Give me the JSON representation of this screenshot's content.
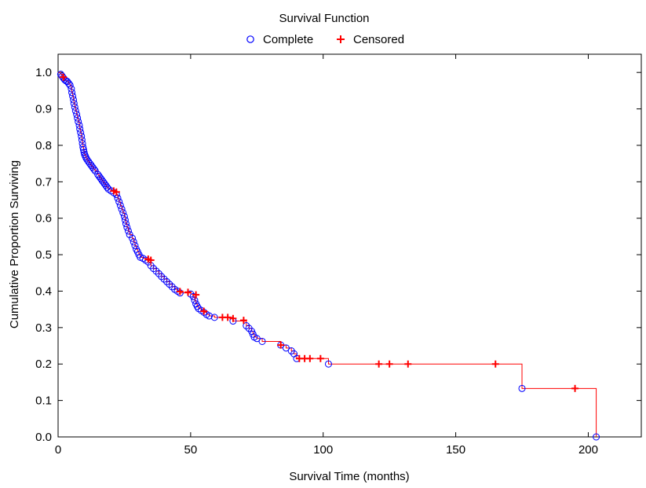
{
  "chart_data": {
    "type": "line",
    "title": "Survival Function",
    "xlabel": "Survival Time (months)",
    "ylabel": "Cumulative Proportion Surviving",
    "xlim": [
      0,
      220
    ],
    "ylim": [
      0,
      1.05
    ],
    "x_ticks": [
      0,
      50,
      100,
      150,
      200
    ],
    "y_ticks": [
      0.0,
      0.1,
      0.2,
      0.3,
      0.4,
      0.5,
      0.6,
      0.7,
      0.8,
      0.9,
      1.0
    ],
    "y_tick_labels": [
      "0.0",
      "0.1",
      "0.2",
      "0.3",
      "0.4",
      "0.5",
      "0.6",
      "0.7",
      "0.8",
      "0.9",
      "1.0"
    ],
    "grid": false,
    "legend_position": "top-center",
    "legend": [
      {
        "label": "Complete",
        "marker": "circle",
        "color": "#0000ff"
      },
      {
        "label": "Censored",
        "marker": "plus",
        "color": "#ff0000"
      }
    ],
    "line_color": "#ff0000",
    "series": [
      {
        "name": "Complete",
        "x": [
          1,
          1.5,
          2,
          2.5,
          3,
          3.5,
          4,
          4.5,
          5,
          5.2,
          5.5,
          5.8,
          6,
          6.3,
          6.6,
          7,
          7.3,
          7.6,
          8,
          8.2,
          8.5,
          8.8,
          9,
          9.2,
          9.4,
          9.6,
          9.8,
          10,
          10.3,
          10.6,
          11,
          11.5,
          12,
          12.5,
          13,
          13.5,
          14,
          15,
          15.5,
          16,
          16.5,
          17,
          17.5,
          18,
          18.5,
          19,
          20,
          21,
          22,
          22.5,
          23,
          23.5,
          24,
          24.5,
          25,
          25.3,
          25.6,
          26,
          26.5,
          27,
          28,
          28.5,
          29,
          29.5,
          30,
          30.5,
          31,
          32,
          33,
          34,
          35,
          36,
          37,
          38,
          39,
          40,
          41,
          42,
          43,
          44,
          45,
          46,
          50,
          51,
          51.5,
          52,
          52.5,
          53,
          54,
          55,
          56,
          57,
          59,
          66,
          71,
          72,
          73,
          73.5,
          74,
          75,
          77,
          84,
          86,
          88,
          89,
          90,
          102,
          175,
          203
        ],
        "y": [
          0.995,
          0.99,
          0.985,
          0.98,
          0.977,
          0.975,
          0.97,
          0.965,
          0.955,
          0.945,
          0.935,
          0.925,
          0.915,
          0.905,
          0.895,
          0.885,
          0.875,
          0.865,
          0.855,
          0.845,
          0.835,
          0.825,
          0.815,
          0.805,
          0.795,
          0.788,
          0.781,
          0.775,
          0.77,
          0.765,
          0.76,
          0.755,
          0.75,
          0.745,
          0.74,
          0.735,
          0.73,
          0.72,
          0.715,
          0.71,
          0.705,
          0.7,
          0.695,
          0.69,
          0.685,
          0.68,
          0.675,
          0.67,
          0.665,
          0.655,
          0.645,
          0.635,
          0.625,
          0.615,
          0.605,
          0.595,
          0.585,
          0.575,
          0.565,
          0.555,
          0.545,
          0.535,
          0.525,
          0.515,
          0.508,
          0.5,
          0.493,
          0.49,
          0.485,
          0.48,
          0.47,
          0.462,
          0.455,
          0.448,
          0.44,
          0.433,
          0.426,
          0.419,
          0.412,
          0.405,
          0.4,
          0.395,
          0.392,
          0.385,
          0.375,
          0.365,
          0.358,
          0.352,
          0.347,
          0.342,
          0.336,
          0.332,
          0.328,
          0.318,
          0.305,
          0.298,
          0.29,
          0.282,
          0.274,
          0.27,
          0.262,
          0.252,
          0.244,
          0.236,
          0.228,
          0.215,
          0.2,
          0.133,
          0.0
        ]
      },
      {
        "name": "Censored",
        "x": [
          2,
          21,
          22,
          34,
          35,
          46,
          49,
          52,
          55,
          62,
          64,
          66,
          70,
          84,
          91,
          93,
          95,
          99,
          121,
          125,
          132,
          165,
          195
        ],
        "y": [
          0.987,
          0.675,
          0.672,
          0.488,
          0.485,
          0.399,
          0.397,
          0.39,
          0.345,
          0.328,
          0.328,
          0.325,
          0.32,
          0.252,
          0.215,
          0.215,
          0.215,
          0.215,
          0.2,
          0.2,
          0.2,
          0.2,
          0.133
        ]
      }
    ]
  }
}
